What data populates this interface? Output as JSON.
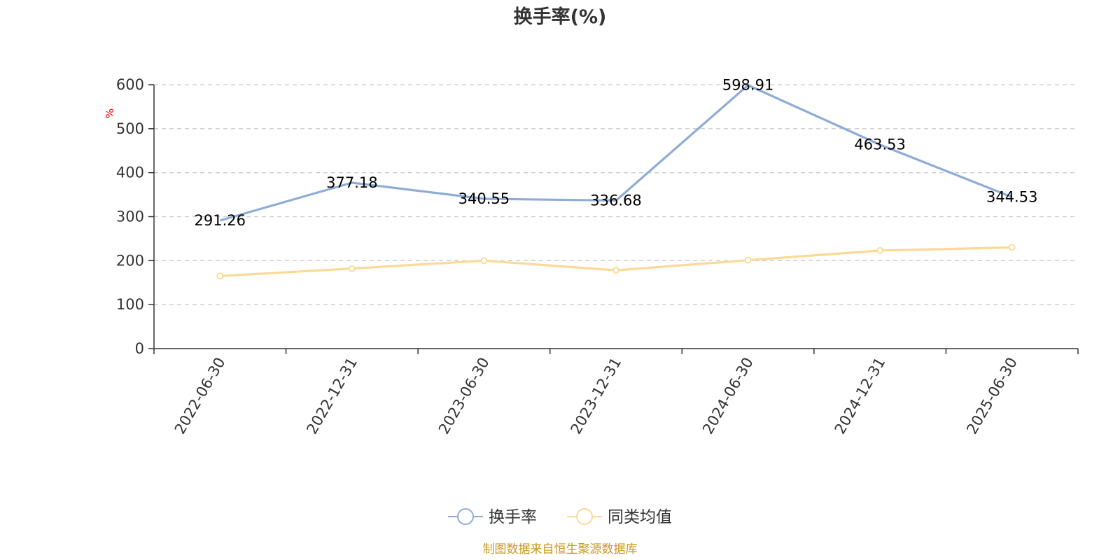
{
  "chart_data": {
    "type": "line",
    "title": "换手率(%)",
    "ylabel": "%",
    "ylim": [
      0,
      600
    ],
    "yticks": [
      0,
      100,
      200,
      300,
      400,
      500,
      600
    ],
    "grid": true,
    "legend_position": "bottom-center",
    "categories": [
      "2022-06-30",
      "2022-12-31",
      "2023-06-30",
      "2023-12-31",
      "2024-06-30",
      "2024-12-31",
      "2025-06-30"
    ],
    "series": [
      {
        "name": "换手率",
        "color": "#8eacd8",
        "values": [
          291.26,
          377.18,
          340.55,
          336.68,
          598.91,
          463.53,
          344.53
        ],
        "data_labels": [
          "291.26",
          "377.18",
          "340.55",
          "336.68",
          "598.91",
          "463.53",
          "344.53"
        ],
        "show_markers": false
      },
      {
        "name": "同类均值",
        "color": "#fcd995",
        "values": [
          165,
          182,
          200,
          178,
          201,
          223,
          230
        ],
        "show_markers": true
      }
    ]
  },
  "source": "制图数据来自恒生聚源数据库"
}
